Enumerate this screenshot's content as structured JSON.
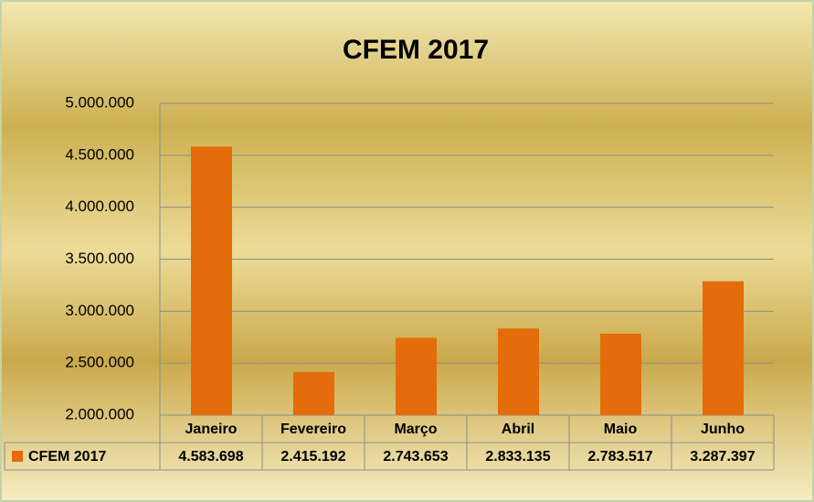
{
  "chart_data": {
    "type": "bar",
    "title": "CFEM 2017",
    "categories": [
      "Janeiro",
      "Fevereiro",
      "Março",
      "Abril",
      "Maio",
      "Junho"
    ],
    "series": [
      {
        "name": "CFEM 2017",
        "color": "#e46c0a",
        "values": [
          4583698,
          2415192,
          2743653,
          2833135,
          2783517,
          3287397
        ],
        "value_labels": [
          "4.583.698",
          "2.415.192",
          "2.743.653",
          "2.833.135",
          "2.783.517",
          "3.287.397"
        ]
      }
    ],
    "ylim": [
      2000000,
      5000000
    ],
    "yticks": [
      {
        "value": 2000000,
        "label": "2.000.000"
      },
      {
        "value": 2500000,
        "label": "2.500.000"
      },
      {
        "value": 3000000,
        "label": "3.000.000"
      },
      {
        "value": 3500000,
        "label": "3.500.000"
      },
      {
        "value": 4000000,
        "label": "4.000.000"
      },
      {
        "value": 4500000,
        "label": "4.500.000"
      },
      {
        "value": 5000000,
        "label": "5.000.000"
      }
    ],
    "grid": true,
    "data_table": true
  }
}
